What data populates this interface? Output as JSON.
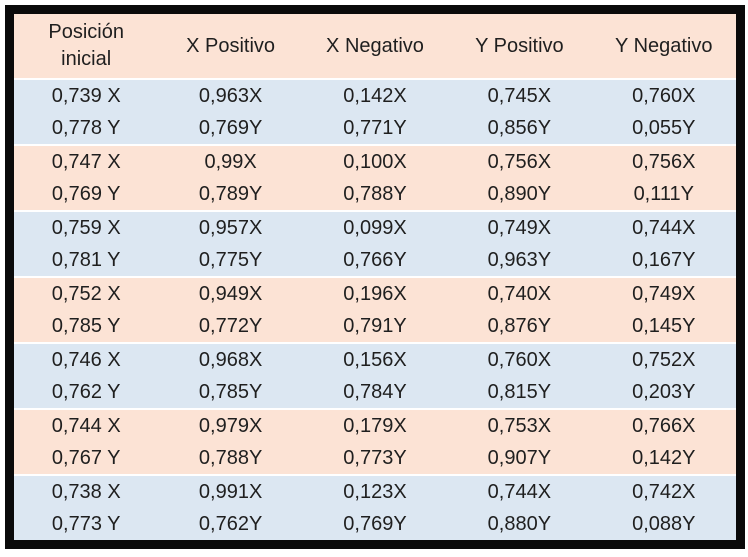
{
  "table": {
    "colors": {
      "header_and_odd_group_bg": "#FCE3D5",
      "even_group_bg": "#DCE7F2",
      "separator": "#FFFFFF",
      "text": "#1F1F1F",
      "frame_border": "#0A0A0A"
    },
    "headers": [
      "Posición\ninicial",
      "X Positivo",
      "X Negativo",
      "Y Positivo",
      "Y Negativo"
    ],
    "rows": [
      {
        "cells": [
          "0,739 X",
          "0,963X",
          "0,142X",
          "0,745X",
          "0,760X"
        ]
      },
      {
        "cells": [
          "0,778 Y",
          "0,769Y",
          "0,771Y",
          "0,856Y",
          "0,055Y"
        ]
      },
      {
        "cells": [
          "0,747 X",
          "0,99X",
          "0,100X",
          "0,756X",
          "0,756X"
        ]
      },
      {
        "cells": [
          "0,769 Y",
          "0,789Y",
          "0,788Y",
          "0,890Y",
          "0,111Y"
        ]
      },
      {
        "cells": [
          "0,759 X",
          "0,957X",
          "0,099X",
          "0,749X",
          "0,744X"
        ]
      },
      {
        "cells": [
          "0,781 Y",
          "0,775Y",
          "0,766Y",
          "0,963Y",
          "0,167Y"
        ]
      },
      {
        "cells": [
          "0,752 X",
          "0,949X",
          "0,196X",
          "0,740X",
          "0,749X"
        ]
      },
      {
        "cells": [
          "0,785 Y",
          "0,772Y",
          "0,791Y",
          "0,876Y",
          "0,145Y"
        ]
      },
      {
        "cells": [
          "0,746 X",
          "0,968X",
          "0,156X",
          "0,760X",
          "0,752X"
        ]
      },
      {
        "cells": [
          "0,762 Y",
          "0,785Y",
          "0,784Y",
          "0,815Y",
          "0,203Y"
        ]
      },
      {
        "cells": [
          "0,744 X",
          "0,979X",
          "0,179X",
          "0,753X",
          "0,766X"
        ]
      },
      {
        "cells": [
          "0,767 Y",
          "0,788Y",
          "0,773Y",
          "0,907Y",
          "0,142Y"
        ]
      },
      {
        "cells": [
          "0,738 X",
          "0,991X",
          "0,123X",
          "0,744X",
          "0,742X"
        ]
      },
      {
        "cells": [
          "0,773 Y",
          "0,762Y",
          "0,769Y",
          "0,880Y",
          "0,088Y"
        ]
      }
    ]
  }
}
